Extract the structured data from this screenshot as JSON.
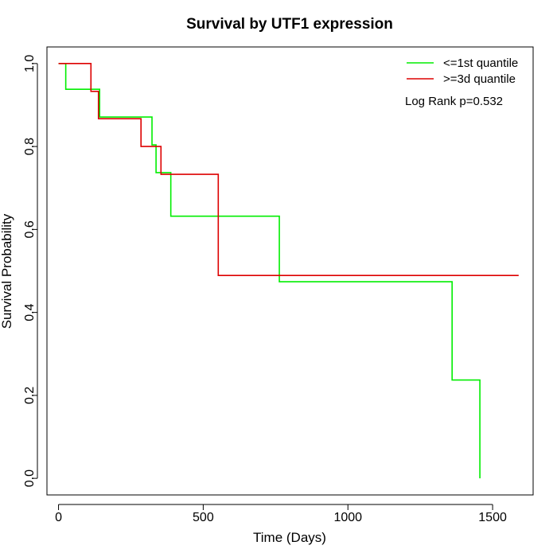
{
  "chart_data": {
    "type": "line",
    "step": true,
    "title": "Survival by UTF1 expression",
    "xlabel": "Time (Days)",
    "ylabel": "Survival Probability",
    "xlim": [
      -40,
      1640
    ],
    "ylim": [
      -0.04,
      1.04
    ],
    "xticks": [
      0,
      500,
      1000,
      1500
    ],
    "yticks": [
      0.0,
      0.2,
      0.4,
      0.6,
      0.8,
      1.0
    ],
    "xtick_labels": [
      "0",
      "500",
      "1000",
      "1500"
    ],
    "ytick_labels": [
      "0.0",
      "0.2",
      "0.4",
      "0.6",
      "0.8",
      "1.0"
    ],
    "grid": false,
    "legend_position": "top-right",
    "annotation": "Log Rank p=0.532",
    "series": [
      {
        "name": "<=1st quantile",
        "color": "#00ee00",
        "x": [
          0,
          25,
          135,
          142,
          303,
          323,
          337,
          388,
          763,
          1360,
          1456
        ],
        "y": [
          1.0,
          0.938,
          0.938,
          0.871,
          0.871,
          0.804,
          0.737,
          0.632,
          0.474,
          0.237,
          0.0
        ]
      },
      {
        "name": ">=3d quantile",
        "color": "#dd0000",
        "x": [
          0,
          112,
          138,
          285,
          354,
          552,
          1590
        ],
        "y": [
          1.0,
          0.933,
          0.867,
          0.8,
          0.733,
          0.489,
          0.489
        ]
      }
    ]
  }
}
